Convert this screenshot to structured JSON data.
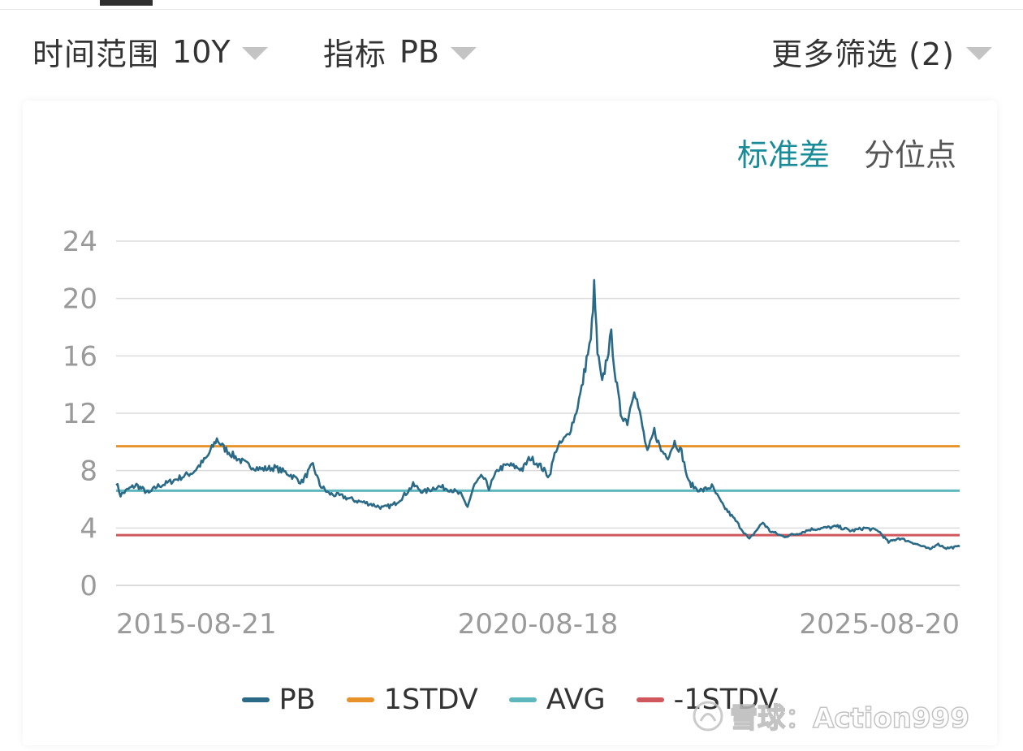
{
  "filters": {
    "time_range": {
      "label": "时间范围",
      "value": "10Y"
    },
    "metric": {
      "label": "指标",
      "value": "PB"
    },
    "more": {
      "label": "更多筛选 (2)"
    }
  },
  "mode_tabs": [
    {
      "label": "标准差",
      "active": true
    },
    {
      "label": "分位点",
      "active": false
    }
  ],
  "legend": [
    {
      "label": "PB",
      "color": "#2b6a87"
    },
    {
      "label": "1STDV",
      "color": "#e8932a"
    },
    {
      "label": "AVG",
      "color": "#5fb7be"
    },
    {
      "label": "-1STDV",
      "color": "#d0575c"
    }
  ],
  "watermark": {
    "text": "雪球：Action999"
  },
  "icons": [
    "caret-down-icon",
    "snowball-logo-icon"
  ],
  "chart_data": {
    "type": "line",
    "ylim": [
      0,
      24
    ],
    "y_ticks": [
      0,
      4,
      8,
      12,
      16,
      20,
      24
    ],
    "x_tick_labels": [
      "2015-08-21",
      "2020-08-18",
      "2025-08-20"
    ],
    "x_start": "2015-08-21",
    "x_end": "2025-12-31",
    "grid": true,
    "legend_position": "bottom",
    "series": [
      {
        "name": "PB",
        "color": "#2b6a87",
        "points": [
          [
            "2015-08-21",
            7.2
          ],
          [
            "2015-09-10",
            6.3
          ],
          [
            "2015-10-15",
            6.7
          ],
          [
            "2015-11-20",
            7.0
          ],
          [
            "2016-01-15",
            6.4
          ],
          [
            "2016-02-20",
            6.9
          ],
          [
            "2016-04-01",
            7.1
          ],
          [
            "2016-06-01",
            7.5
          ],
          [
            "2016-08-01",
            7.9
          ],
          [
            "2016-10-01",
            8.9
          ],
          [
            "2016-11-15",
            10.2
          ],
          [
            "2016-12-15",
            9.6
          ],
          [
            "2017-02-01",
            9.0
          ],
          [
            "2017-04-01",
            8.4
          ],
          [
            "2017-06-01",
            8.1
          ],
          [
            "2017-08-01",
            8.2
          ],
          [
            "2017-10-01",
            7.8
          ],
          [
            "2017-12-01",
            7.2
          ],
          [
            "2018-01-20",
            8.4
          ],
          [
            "2018-02-20",
            7.0
          ],
          [
            "2018-04-01",
            6.4
          ],
          [
            "2018-06-01",
            6.2
          ],
          [
            "2018-08-01",
            5.9
          ],
          [
            "2018-10-01",
            5.7
          ],
          [
            "2018-12-01",
            5.4
          ],
          [
            "2019-01-15",
            5.6
          ],
          [
            "2019-03-01",
            6.2
          ],
          [
            "2019-04-15",
            7.0
          ],
          [
            "2019-06-01",
            6.5
          ],
          [
            "2019-08-01",
            6.9
          ],
          [
            "2019-10-01",
            6.7
          ],
          [
            "2019-11-15",
            6.3
          ],
          [
            "2019-12-15",
            5.5
          ],
          [
            "2020-01-15",
            7.0
          ],
          [
            "2020-02-20",
            7.6
          ],
          [
            "2020-03-20",
            6.8
          ],
          [
            "2020-05-01",
            8.1
          ],
          [
            "2020-06-15",
            8.4
          ],
          [
            "2020-08-18",
            8.1
          ],
          [
            "2020-09-20",
            8.9
          ],
          [
            "2020-11-01",
            8.4
          ],
          [
            "2020-12-15",
            7.6
          ],
          [
            "2021-01-15",
            9.5
          ],
          [
            "2021-02-01",
            9.8
          ],
          [
            "2021-03-10",
            10.5
          ],
          [
            "2021-04-10",
            11.8
          ],
          [
            "2021-05-10",
            13.7
          ],
          [
            "2021-06-01",
            15.8
          ],
          [
            "2021-06-20",
            17.0
          ],
          [
            "2021-07-05",
            20.8
          ],
          [
            "2021-07-20",
            16.2
          ],
          [
            "2021-08-10",
            14.0
          ],
          [
            "2021-09-01",
            16.0
          ],
          [
            "2021-09-20",
            17.4
          ],
          [
            "2021-10-10",
            14.4
          ],
          [
            "2021-11-01",
            12.0
          ],
          [
            "2021-12-01",
            11.4
          ],
          [
            "2022-01-01",
            13.8
          ],
          [
            "2022-02-01",
            11.5
          ],
          [
            "2022-03-01",
            9.2
          ],
          [
            "2022-04-01",
            10.8
          ],
          [
            "2022-05-01",
            9.4
          ],
          [
            "2022-06-01",
            9.0
          ],
          [
            "2022-07-01",
            10.0
          ],
          [
            "2022-08-01",
            9.3
          ],
          [
            "2022-09-01",
            7.2
          ],
          [
            "2022-10-01",
            6.8
          ],
          [
            "2022-11-01",
            6.6
          ],
          [
            "2022-12-15",
            6.9
          ],
          [
            "2023-02-01",
            5.6
          ],
          [
            "2023-04-01",
            4.5
          ],
          [
            "2023-06-01",
            3.2
          ],
          [
            "2023-07-01",
            3.8
          ],
          [
            "2023-08-01",
            4.4
          ],
          [
            "2023-09-01",
            3.8
          ],
          [
            "2023-11-01",
            3.4
          ],
          [
            "2024-01-01",
            3.6
          ],
          [
            "2024-03-01",
            3.9
          ],
          [
            "2024-05-01",
            4.0
          ],
          [
            "2024-07-01",
            4.1
          ],
          [
            "2024-09-01",
            3.8
          ],
          [
            "2024-11-01",
            4.0
          ],
          [
            "2025-01-01",
            3.8
          ],
          [
            "2025-02-15",
            3.0
          ],
          [
            "2025-04-01",
            3.3
          ],
          [
            "2025-06-01",
            3.0
          ],
          [
            "2025-08-20",
            2.5
          ],
          [
            "2025-09-20",
            2.9
          ],
          [
            "2025-11-01",
            2.6
          ],
          [
            "2025-12-31",
            2.7
          ]
        ]
      },
      {
        "name": "1STDV",
        "color": "#e8932a",
        "value": 9.7
      },
      {
        "name": "AVG",
        "color": "#5fb7be",
        "value": 6.6
      },
      {
        "name": "-1STDV",
        "color": "#d0575c",
        "value": 3.5
      }
    ]
  }
}
